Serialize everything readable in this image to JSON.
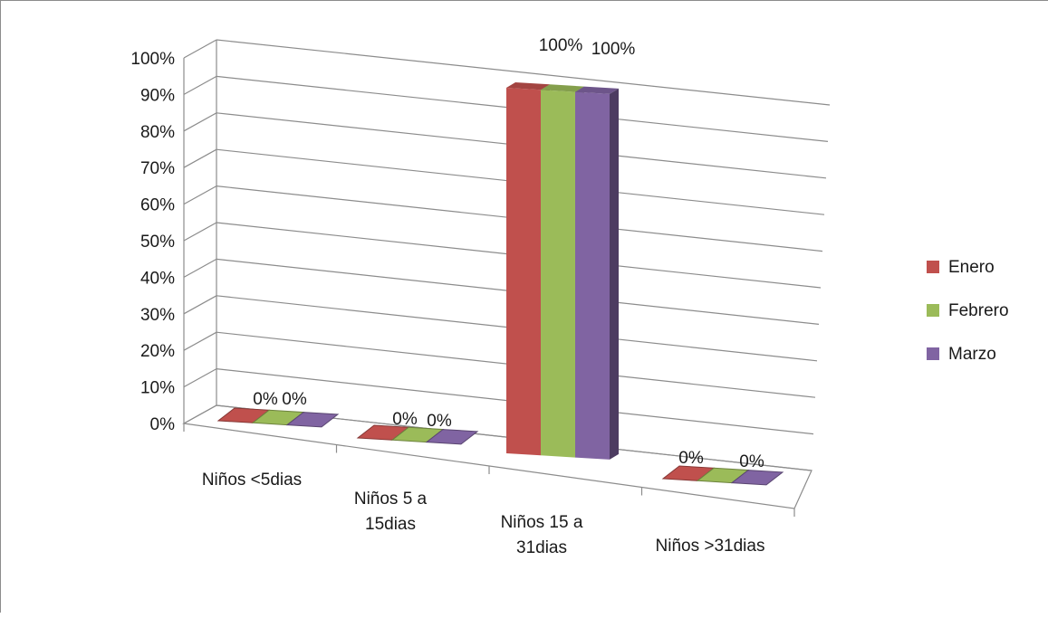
{
  "chart_data": {
    "type": "bar",
    "categories": [
      [
        "Niños <5dias"
      ],
      [
        "Niños 5 a",
        "15dias"
      ],
      [
        "Niños 15 a",
        "31dias"
      ],
      [
        "Niños >31dias"
      ]
    ],
    "series": [
      {
        "name": "Enero",
        "values": [
          0,
          0,
          100,
          0
        ],
        "color": "#c0504d"
      },
      {
        "name": "Febrero",
        "values": [
          0,
          0,
          100,
          0
        ],
        "color": "#9bbb59"
      },
      {
        "name": "Marzo",
        "values": [
          0,
          0,
          100,
          0
        ],
        "color": "#8064a2"
      }
    ],
    "data_labels": [
      [
        "0%",
        "0%",
        "",
        "0%"
      ],
      [
        "0%",
        "0%",
        "100%",
        "0%"
      ],
      [
        "",
        "",
        "100%",
        ""
      ]
    ],
    "ylim": [
      0,
      100
    ],
    "y_ticks": [
      "0%",
      "10%",
      "20%",
      "30%",
      "40%",
      "50%",
      "60%",
      "70%",
      "80%",
      "90%",
      "100%"
    ],
    "grid": true,
    "legend_position": "right",
    "style": "3d-clustered-column"
  }
}
